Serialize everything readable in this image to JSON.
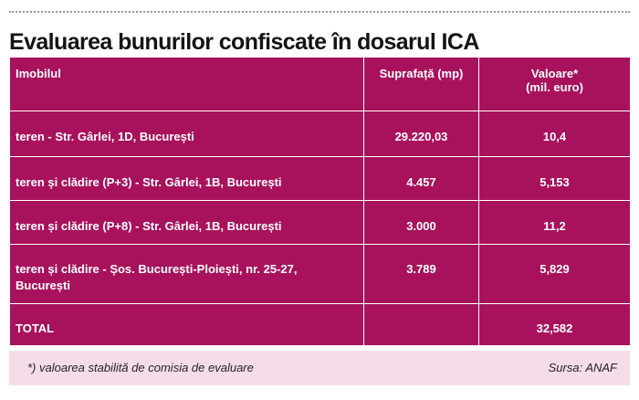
{
  "title": "Evaluarea bunurilor confiscate în dosarul ICA",
  "table": {
    "headers": {
      "col1": "Imobilul",
      "col2": "Suprafață (mp)",
      "col3_line1": "Valoare*",
      "col3_line2": "(mil. euro)"
    },
    "rows": [
      {
        "imobil": "teren - Str. Gârlei, 1D, București",
        "suprafata": "29.220,03",
        "valoare": "10,4"
      },
      {
        "imobil": "teren și clădire (P+3) - Str. Gârlei, 1B, București",
        "suprafata": "4.457",
        "valoare": "5,153"
      },
      {
        "imobil": "teren și clădire (P+8) - Str. Gârlei, 1B, București",
        "suprafata": "3.000",
        "valoare": "11,2"
      },
      {
        "imobil_line1": "teren și clădire - Șos. București-Ploiești, nr. 25-27,",
        "imobil_line2": "București",
        "suprafata": "3.789",
        "valoare": "5,829"
      }
    ],
    "total": {
      "label": "TOTAL",
      "suprafata": "",
      "valoare": "32,582"
    }
  },
  "footer": {
    "note": "*) valoarea stabilită de comisia de evaluare",
    "source": "Sursa: ANAF"
  },
  "colors": {
    "table_bg": "#a8125c",
    "footer_bg": "#f4dde9",
    "title": "#141414"
  }
}
